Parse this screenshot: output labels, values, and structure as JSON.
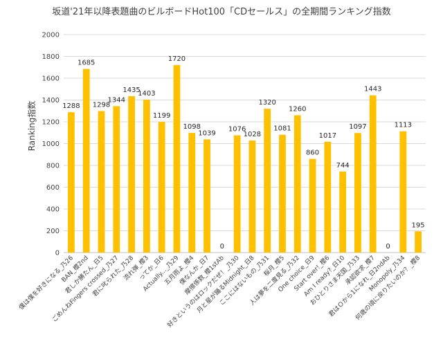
{
  "chart_data": {
    "type": "bar",
    "title": "坂道'21年以降表題曲のビルボードHot100「CDセールス」の全期間ランキング指数",
    "xlabel": "",
    "ylabel": "Ranking指数",
    "ylim": [
      0,
      2000
    ],
    "yticks": [
      0,
      200,
      400,
      600,
      800,
      1000,
      1200,
      1400,
      1600,
      1800,
      2000
    ],
    "grid": true,
    "legend": "none",
    "bar_color": "#FFC000",
    "categories": [
      "僕は僕を好きになる_乃26",
      "BAN_櫻2nd",
      "君しか勝たん_日5",
      "ごめんねFingers crossed_乃27",
      "君に叱られた_乃28",
      "流れ弾_櫻3",
      "ってか_日6",
      "Actually..._乃29",
      "五月雨よ_櫻4",
      "僕なんか_日7",
      "摩擦係数_櫻1stAb",
      "好きというのはロックだぜ！_乃30",
      "月と星が踊るMidnight_日8",
      "ここにはないもの_乃31",
      "桜月_櫻5",
      "人は夢を二度見る_乃32",
      "One choice_日9",
      "Start over!_櫻6",
      "Am I ready?_日10",
      "おひとりさま天国_乃33",
      "承認欲求_櫻7",
      "君はＯから1になれ_日2ndAb",
      "Monopoly_乃34",
      "何歳の頃に戻りたいのか？_櫻8"
    ],
    "values": [
      1288,
      1685,
      1298,
      1344,
      1435,
      1403,
      1199,
      1720,
      1098,
      1039,
      0,
      1076,
      1028,
      1320,
      1081,
      1260,
      860,
      1017,
      744,
      1097,
      1443,
      0,
      1113,
      195
    ]
  }
}
